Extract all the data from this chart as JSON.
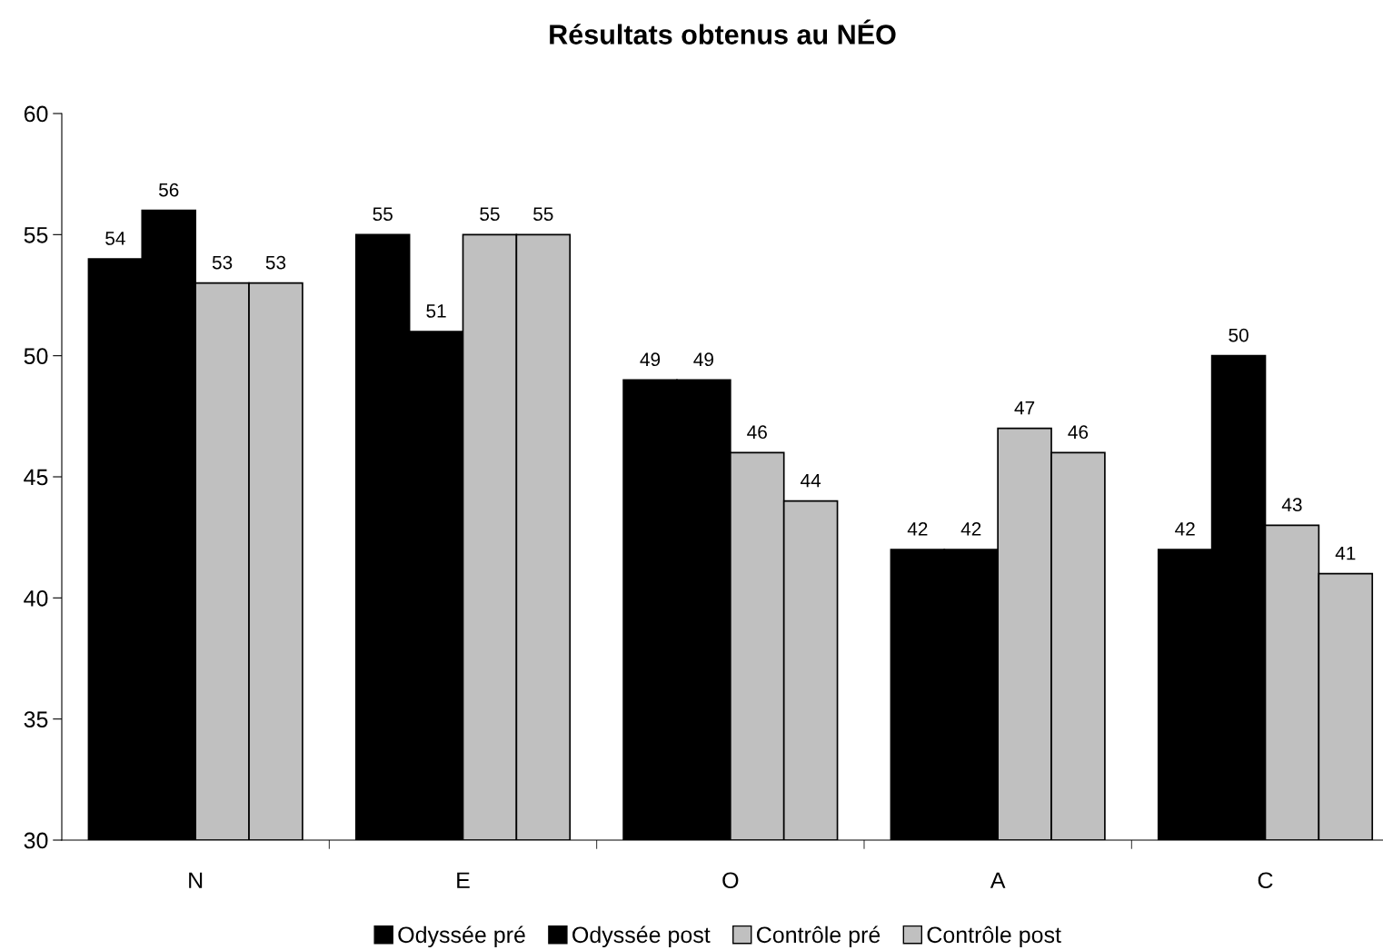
{
  "chart_data": {
    "type": "bar",
    "title": "Résultats obtenus au NÉO",
    "categories": [
      "N",
      "E",
      "O",
      "A",
      "C"
    ],
    "series": [
      {
        "name": "Odyssée pré",
        "color": "#000000",
        "values": [
          54,
          55,
          49,
          42,
          42
        ]
      },
      {
        "name": "Odyssée post",
        "color": "#000000",
        "values": [
          56,
          51,
          49,
          42,
          50
        ]
      },
      {
        "name": "Contrôle pré",
        "color": "#c0c0c0",
        "values": [
          53,
          55,
          46,
          47,
          43
        ]
      },
      {
        "name": "Contrôle post",
        "color": "#c0c0c0",
        "values": [
          53,
          55,
          44,
          46,
          41
        ]
      }
    ],
    "ylim": [
      30,
      60
    ],
    "yticks": [
      30,
      35,
      40,
      45,
      50,
      55,
      60
    ],
    "data_labels": true,
    "grid": false,
    "legend": "bottom"
  }
}
